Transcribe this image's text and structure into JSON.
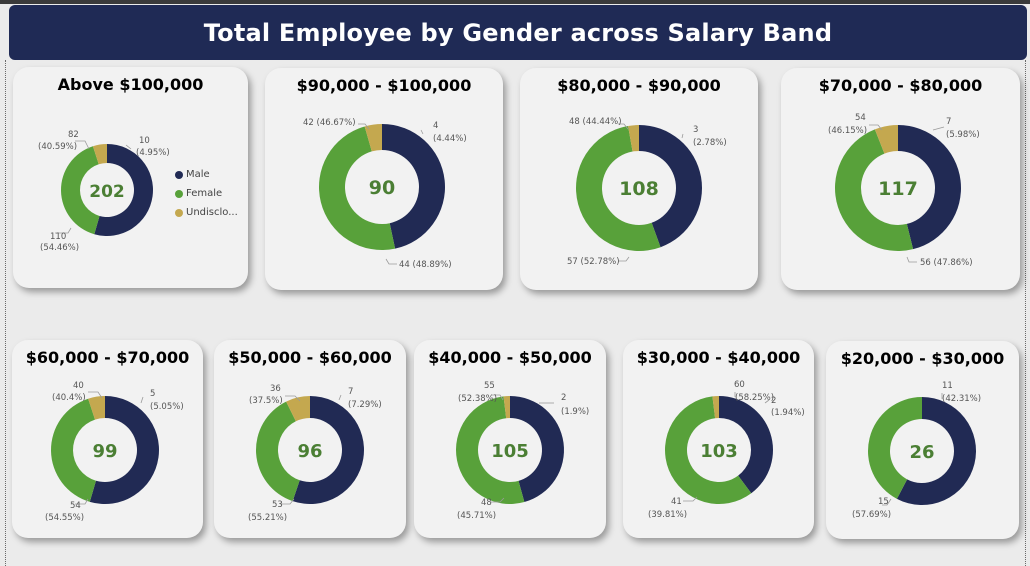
{
  "title": "Total Employee by Gender across Salary Band",
  "colors": {
    "Male": "#212a54",
    "Female": "#58a13a",
    "Undisclosed": "#c4a84f"
  },
  "legend": [
    {
      "key": "Male",
      "label": "Male"
    },
    {
      "key": "Female",
      "label": "Female"
    },
    {
      "key": "Undisclosed",
      "label": "Undisclo..."
    }
  ],
  "chart_data": [
    {
      "type": "pie",
      "title": "Above $100,000",
      "total": "202",
      "categories": [
        "Male",
        "Female",
        "Undisclosed"
      ],
      "values": [
        110,
        82,
        10
      ],
      "labels": [
        "110",
        "82",
        "10"
      ],
      "percents": [
        "(54.46%)",
        "(40.59%)",
        "(4.95%)"
      ]
    },
    {
      "type": "pie",
      "title": "$90,000 - $100,000",
      "total": "90",
      "categories": [
        "Male",
        "Female",
        "Undisclosed"
      ],
      "values": [
        42,
        44,
        4
      ],
      "labels": [
        "42 (46.67%)",
        "44 (48.89%)",
        "4"
      ],
      "percents": [
        "",
        "",
        "(4.44%)"
      ]
    },
    {
      "type": "pie",
      "title": "$80,000 - $90,000",
      "total": "108",
      "categories": [
        "Male",
        "Female",
        "Undisclosed"
      ],
      "values": [
        48,
        57,
        3
      ],
      "labels": [
        "48 (44.44%)",
        "57 (52.78%)",
        "3"
      ],
      "percents": [
        "",
        "",
        "(2.78%)"
      ]
    },
    {
      "type": "pie",
      "title": "$70,000 - $80,000",
      "total": "117",
      "categories": [
        "Male",
        "Female",
        "Undisclosed"
      ],
      "values": [
        54,
        56,
        7
      ],
      "labels": [
        "54",
        "56 (47.86%)",
        "7"
      ],
      "percents": [
        "(46.15%)",
        "",
        "(5.98%)"
      ]
    },
    {
      "type": "pie",
      "title": "$60,000 - $70,000",
      "total": "99",
      "categories": [
        "Male",
        "Female",
        "Undisclosed"
      ],
      "values": [
        54,
        40,
        5
      ],
      "labels": [
        "54",
        "40",
        "5"
      ],
      "percents": [
        "(54.55%)",
        "(40.4%)",
        "(5.05%)"
      ]
    },
    {
      "type": "pie",
      "title": "$50,000 - $60,000",
      "total": "96",
      "categories": [
        "Male",
        "Female",
        "Undisclosed"
      ],
      "values": [
        53,
        36,
        7
      ],
      "labels": [
        "53",
        "36",
        "7"
      ],
      "percents": [
        "(55.21%)",
        "(37.5%)",
        "(7.29%)"
      ]
    },
    {
      "type": "pie",
      "title": "$40,000 - $50,000",
      "total": "105",
      "categories": [
        "Male",
        "Female",
        "Undisclosed"
      ],
      "values": [
        48,
        55,
        2
      ],
      "labels": [
        "48",
        "55",
        "2"
      ],
      "percents": [
        "(45.71%)",
        "(52.38%)",
        "(1.9%)"
      ]
    },
    {
      "type": "pie",
      "title": "$30,000 - $40,000",
      "total": "103",
      "categories": [
        "Male",
        "Female",
        "Undisclosed"
      ],
      "values": [
        41,
        60,
        2
      ],
      "labels": [
        "41",
        "60",
        "2"
      ],
      "percents": [
        "(39.81%)",
        "(58.25%)",
        "(1.94%)"
      ]
    },
    {
      "type": "pie",
      "title": "$20,000 - $30,000",
      "total": "26",
      "categories": [
        "Male",
        "Female"
      ],
      "values": [
        15,
        11
      ],
      "labels": [
        "15",
        "11"
      ],
      "percents": [
        "(57.69%)",
        "(42.31%)"
      ]
    }
  ]
}
